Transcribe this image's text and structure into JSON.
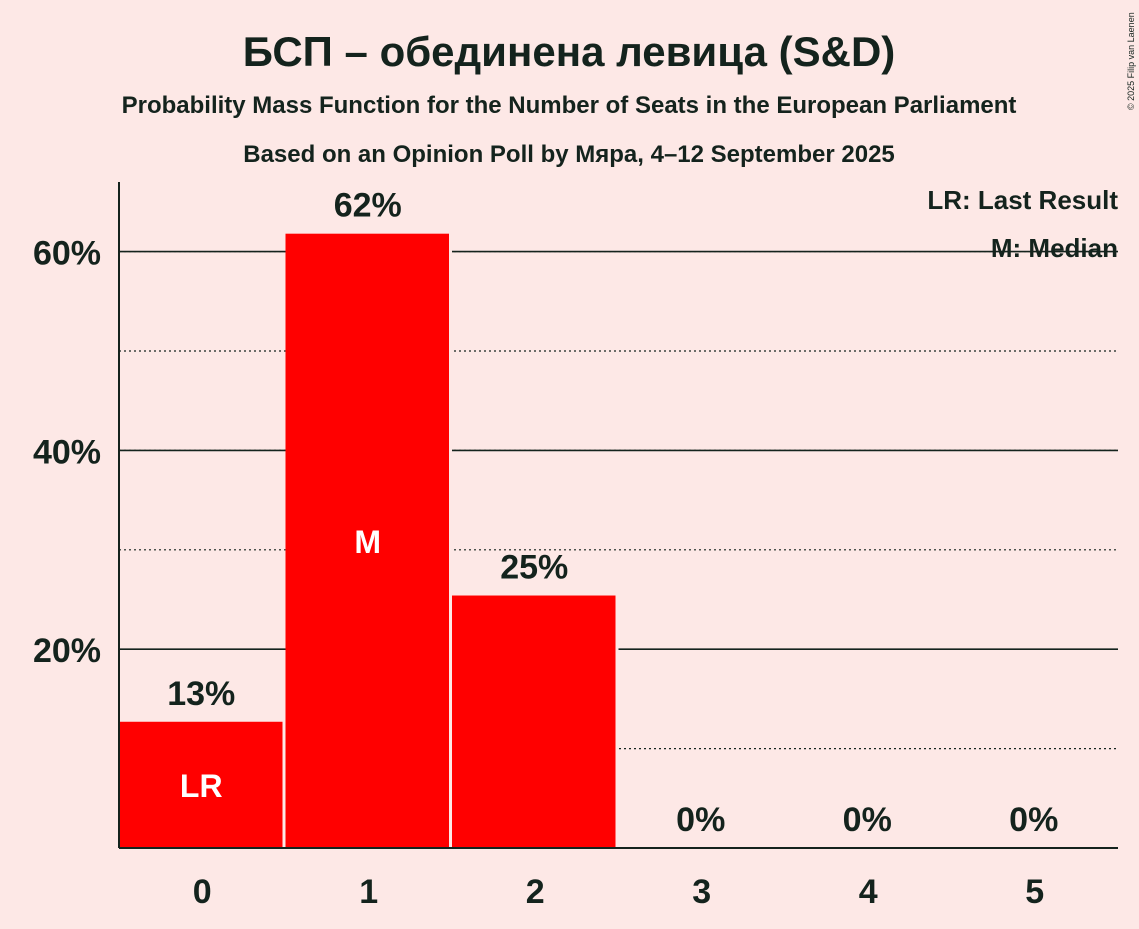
{
  "copyright": "© 2025 Filip van Laenen",
  "chart_data": {
    "type": "bar",
    "title": "БСП – обединена левица (S&D)",
    "subtitle": "Probability Mass Function for the Number of Seats in the European Parliament",
    "subtitle2": "Based on an Opinion Poll by Мяра, 4–12 September 2025",
    "categories": [
      "0",
      "1",
      "2",
      "3",
      "4",
      "5"
    ],
    "values": [
      12.7,
      61.8,
      25.4,
      0,
      0,
      0
    ],
    "data_labels": [
      "13%",
      "62%",
      "25%",
      "0%",
      "0%",
      "0%"
    ],
    "bar_markers": [
      "LR",
      "M",
      "",
      "",
      "",
      ""
    ],
    "ylim": [
      0,
      67
    ],
    "y_ticks_major": [
      20,
      40,
      60
    ],
    "y_tick_labels": [
      "20%",
      "40%",
      "60%"
    ],
    "y_ticks_minor": [
      10,
      30,
      50
    ],
    "legend": [
      "LR: Last Result",
      "M: Median"
    ],
    "legend_position": "top-right",
    "bar_color": "#ff0000",
    "background_color": "#fde8e6",
    "text_color": "#14231d"
  }
}
